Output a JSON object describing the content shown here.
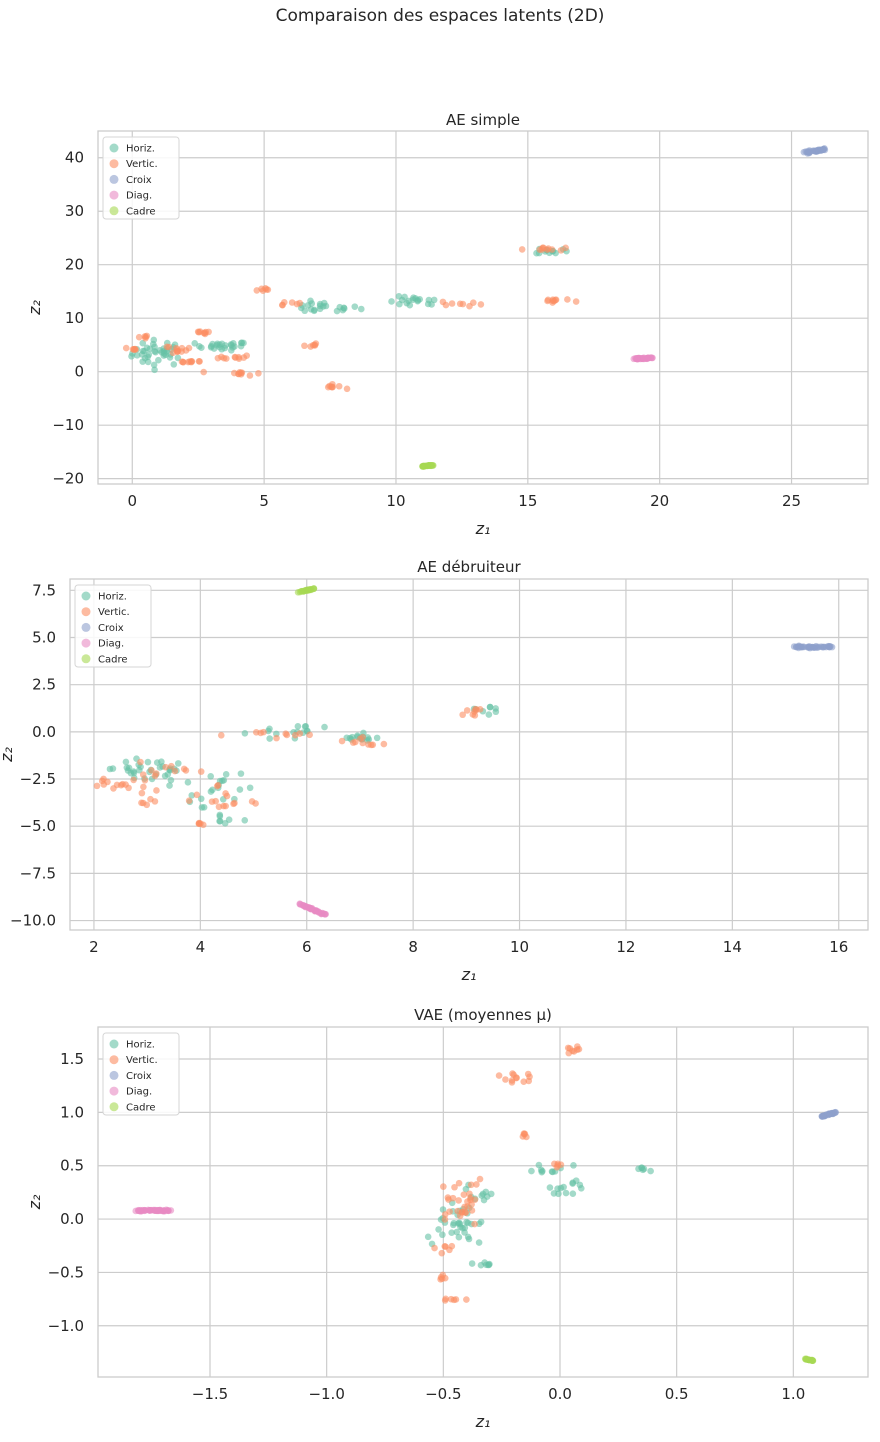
{
  "suptitle": "Comparaison des espaces latents (2D)",
  "legend": [
    "Horiz.",
    "Vertic.",
    "Croix",
    "Diag.",
    "Cadre"
  ],
  "colors": {
    "Horiz.": "#66c2a5",
    "Vertic.": "#fc8d62",
    "Croix": "#8da0cb",
    "Diag.": "#e78ac3",
    "Cadre": "#a6d854"
  },
  "chart_data": [
    {
      "type": "scatter",
      "title": "AE simple",
      "xlabel": "z₁",
      "ylabel": "z₂",
      "xlim": [
        -1.3,
        27.9
      ],
      "ylim": [
        -21,
        45
      ],
      "xticks": [
        0,
        5,
        10,
        15,
        20,
        25
      ],
      "yticks": [
        -20,
        -10,
        0,
        10,
        20,
        30,
        40
      ],
      "clusters": [
        {
          "class": "Horiz.",
          "cx": 1.0,
          "cy": 3.5,
          "sx": 0.5,
          "sy": 1.2,
          "n": 40
        },
        {
          "class": "Horiz.",
          "cx": 3.4,
          "cy": 4.8,
          "sx": 0.5,
          "sy": 0.4,
          "n": 25
        },
        {
          "class": "Horiz.",
          "cx": 7.2,
          "cy": 12.0,
          "sx": 0.7,
          "sy": 0.5,
          "n": 22
        },
        {
          "class": "Horiz.",
          "cx": 10.7,
          "cy": 13.0,
          "sx": 0.5,
          "sy": 0.5,
          "n": 18
        },
        {
          "class": "Horiz.",
          "cx": 15.9,
          "cy": 22.6,
          "sx": 0.3,
          "sy": 0.3,
          "n": 12
        },
        {
          "class": "Vertic.",
          "cx": 0.0,
          "cy": 4.2,
          "sx": 0.1,
          "sy": 0.2,
          "n": 6
        },
        {
          "class": "Vertic.",
          "cx": 0.4,
          "cy": 6.4,
          "sx": 0.1,
          "sy": 0.2,
          "n": 5
        },
        {
          "class": "Vertic.",
          "cx": 1.5,
          "cy": 4.2,
          "sx": 0.5,
          "sy": 0.4,
          "n": 12
        },
        {
          "class": "Vertic.",
          "cx": 2.2,
          "cy": 1.9,
          "sx": 0.3,
          "sy": 0.1,
          "n": 10
        },
        {
          "class": "Vertic.",
          "cx": 2.8,
          "cy": 7.3,
          "sx": 0.3,
          "sy": 0.2,
          "n": 8
        },
        {
          "class": "Vertic.",
          "cx": 3.9,
          "cy": 2.7,
          "sx": 0.3,
          "sy": 0.2,
          "n": 10
        },
        {
          "class": "Vertic.",
          "cx": 4.1,
          "cy": -0.3,
          "sx": 0.4,
          "sy": 0.2,
          "n": 10
        },
        {
          "class": "Vertic.",
          "cx": 5.0,
          "cy": 15.4,
          "sx": 0.2,
          "sy": 0.2,
          "n": 6
        },
        {
          "class": "Vertic.",
          "cx": 5.9,
          "cy": 12.9,
          "sx": 0.2,
          "sy": 0.2,
          "n": 6
        },
        {
          "class": "Vertic.",
          "cx": 6.8,
          "cy": 4.8,
          "sx": 0.2,
          "sy": 0.2,
          "n": 6
        },
        {
          "class": "Vertic.",
          "cx": 7.6,
          "cy": -2.8,
          "sx": 0.2,
          "sy": 0.2,
          "n": 8
        },
        {
          "class": "Vertic.",
          "cx": 12.5,
          "cy": 12.7,
          "sx": 0.4,
          "sy": 0.3,
          "n": 8
        },
        {
          "class": "Vertic.",
          "cx": 15.6,
          "cy": 23.0,
          "sx": 0.4,
          "sy": 0.2,
          "n": 10
        },
        {
          "class": "Vertic.",
          "cx": 16.0,
          "cy": 13.2,
          "sx": 0.3,
          "sy": 0.3,
          "n": 10
        },
        {
          "class": "Croix",
          "cx": 25.9,
          "cy": 41.3,
          "sx": 0.3,
          "sy": 0.3,
          "n": 40,
          "kind": "line",
          "dx": 0.8,
          "dy": 0.7
        },
        {
          "class": "Diag.",
          "cx": 19.4,
          "cy": 2.5,
          "sx": 0.2,
          "sy": 0.15,
          "n": 40,
          "kind": "line",
          "dx": 0.6,
          "dy": 0.2
        },
        {
          "class": "Cadre",
          "cx": 11.2,
          "cy": -17.6,
          "sx": 0.1,
          "sy": 0.1,
          "n": 30,
          "kind": "line",
          "dx": 0.4,
          "dy": 0.2
        }
      ]
    },
    {
      "type": "scatter",
      "title": "AE débruiteur",
      "xlabel": "z₁",
      "ylabel": "z₂",
      "xlim": [
        1.55,
        16.55
      ],
      "ylim": [
        -10.5,
        8.1
      ],
      "xticks": [
        2,
        4,
        6,
        8,
        10,
        12,
        14,
        16
      ],
      "yticks": [
        -10.0,
        -7.5,
        -5.0,
        -2.5,
        0.0,
        2.5,
        5.0,
        7.5
      ],
      "clusters": [
        {
          "class": "Horiz.",
          "cx": 2.8,
          "cy": -1.9,
          "sx": 0.3,
          "sy": 0.3,
          "n": 20
        },
        {
          "class": "Horiz.",
          "cx": 3.2,
          "cy": -2.3,
          "sx": 0.3,
          "sy": 0.4,
          "n": 15
        },
        {
          "class": "Horiz.",
          "cx": 4.3,
          "cy": -3.1,
          "sx": 0.3,
          "sy": 0.6,
          "n": 20
        },
        {
          "class": "Horiz.",
          "cx": 4.4,
          "cy": -4.7,
          "sx": 0.1,
          "sy": 0.2,
          "n": 6
        },
        {
          "class": "Horiz.",
          "cx": 5.6,
          "cy": 0.1,
          "sx": 0.3,
          "sy": 0.2,
          "n": 15
        },
        {
          "class": "Horiz.",
          "cx": 7.0,
          "cy": -0.3,
          "sx": 0.25,
          "sy": 0.1,
          "n": 15
        },
        {
          "class": "Horiz.",
          "cx": 9.4,
          "cy": 1.2,
          "sx": 0.15,
          "sy": 0.1,
          "n": 8
        },
        {
          "class": "Vertic.",
          "cx": 2.6,
          "cy": -2.8,
          "sx": 0.3,
          "sy": 0.2,
          "n": 15
        },
        {
          "class": "Vertic.",
          "cx": 3.3,
          "cy": -2.0,
          "sx": 0.3,
          "sy": 0.3,
          "n": 12
        },
        {
          "class": "Vertic.",
          "cx": 3.1,
          "cy": -3.7,
          "sx": 0.1,
          "sy": 0.1,
          "n": 5
        },
        {
          "class": "Vertic.",
          "cx": 4.2,
          "cy": -3.4,
          "sx": 0.2,
          "sy": 0.4,
          "n": 10
        },
        {
          "class": "Vertic.",
          "cx": 4.0,
          "cy": -4.9,
          "sx": 0.05,
          "sy": 0.1,
          "n": 5
        },
        {
          "class": "Vertic.",
          "cx": 4.8,
          "cy": -3.8,
          "sx": 0.15,
          "sy": 0.1,
          "n": 5
        },
        {
          "class": "Vertic.",
          "cx": 5.6,
          "cy": -0.1,
          "sx": 0.3,
          "sy": 0.1,
          "n": 10
        },
        {
          "class": "Vertic.",
          "cx": 7.0,
          "cy": -0.6,
          "sx": 0.2,
          "sy": 0.1,
          "n": 10
        },
        {
          "class": "Vertic.",
          "cx": 9.1,
          "cy": 1.0,
          "sx": 0.15,
          "sy": 0.15,
          "n": 8
        },
        {
          "class": "Croix",
          "cx": 15.5,
          "cy": 4.5,
          "sx": 0.15,
          "sy": 0.1,
          "n": 40,
          "kind": "line",
          "dx": 0.7,
          "dy": 0.0
        },
        {
          "class": "Diag.",
          "cx": 6.1,
          "cy": -9.4,
          "sx": 0.05,
          "sy": 0.05,
          "n": 40,
          "kind": "line",
          "dx": 0.5,
          "dy": -0.6
        },
        {
          "class": "Cadre",
          "cx": 6.0,
          "cy": 7.5,
          "sx": 0.05,
          "sy": 0.05,
          "n": 25,
          "kind": "line",
          "dx": 0.3,
          "dy": 0.2
        }
      ]
    },
    {
      "type": "scatter",
      "title": "VAE (moyennes μ)",
      "xlabel": "z₁",
      "ylabel": "z₂",
      "xlim": [
        -1.98,
        1.32
      ],
      "ylim": [
        -1.48,
        1.8
      ],
      "xticks": [
        -1.5,
        -1.0,
        -0.5,
        0.0,
        0.5,
        1.0
      ],
      "yticks": [
        -1.0,
        -0.5,
        0.0,
        0.5,
        1.0,
        1.5
      ],
      "clusters": [
        {
          "class": "Horiz.",
          "cx": -0.43,
          "cy": 0.0,
          "sx": 0.04,
          "sy": 0.15,
          "n": 40
        },
        {
          "class": "Horiz.",
          "cx": -0.32,
          "cy": 0.22,
          "sx": 0.02,
          "sy": 0.03,
          "n": 6
        },
        {
          "class": "Horiz.",
          "cx": -0.31,
          "cy": -0.42,
          "sx": 0.015,
          "sy": 0.02,
          "n": 6
        },
        {
          "class": "Horiz.",
          "cx": -0.06,
          "cy": 0.47,
          "sx": 0.05,
          "sy": 0.03,
          "n": 10
        },
        {
          "class": "Horiz.",
          "cx": 0.07,
          "cy": 0.32,
          "sx": 0.04,
          "sy": 0.03,
          "n": 8
        },
        {
          "class": "Horiz.",
          "cx": 0.01,
          "cy": 0.25,
          "sx": 0.02,
          "sy": 0.02,
          "n": 5
        },
        {
          "class": "Horiz.",
          "cx": 0.35,
          "cy": 0.46,
          "sx": 0.02,
          "sy": 0.03,
          "n": 6
        },
        {
          "class": "Vertic.",
          "cx": -0.42,
          "cy": 0.1,
          "sx": 0.04,
          "sy": 0.18,
          "n": 30
        },
        {
          "class": "Vertic.",
          "cx": -0.5,
          "cy": -0.28,
          "sx": 0.02,
          "sy": 0.03,
          "n": 6
        },
        {
          "class": "Vertic.",
          "cx": -0.5,
          "cy": -0.54,
          "sx": 0.01,
          "sy": 0.02,
          "n": 5
        },
        {
          "class": "Vertic.",
          "cx": -0.45,
          "cy": -0.75,
          "sx": 0.03,
          "sy": 0.01,
          "n": 6
        },
        {
          "class": "Vertic.",
          "cx": -0.2,
          "cy": 1.34,
          "sx": 0.04,
          "sy": 0.04,
          "n": 12
        },
        {
          "class": "Vertic.",
          "cx": 0.05,
          "cy": 1.6,
          "sx": 0.02,
          "sy": 0.02,
          "n": 8
        },
        {
          "class": "Vertic.",
          "cx": -0.15,
          "cy": 0.78,
          "sx": 0.01,
          "sy": 0.02,
          "n": 5
        },
        {
          "class": "Vertic.",
          "cx": -0.01,
          "cy": 0.51,
          "sx": 0.01,
          "sy": 0.01,
          "n": 5
        },
        {
          "class": "Croix",
          "cx": 1.15,
          "cy": 0.98,
          "sx": 0.01,
          "sy": 0.01,
          "n": 30,
          "kind": "line",
          "dx": 0.06,
          "dy": 0.04
        },
        {
          "class": "Diag.",
          "cx": -1.74,
          "cy": 0.08,
          "sx": 0.02,
          "sy": 0.01,
          "n": 50,
          "kind": "line",
          "dx": 0.15,
          "dy": 0.0
        },
        {
          "class": "Cadre",
          "cx": 1.07,
          "cy": -1.32,
          "sx": 0.005,
          "sy": 0.005,
          "n": 20,
          "kind": "line",
          "dx": 0.04,
          "dy": -0.02
        }
      ]
    }
  ]
}
